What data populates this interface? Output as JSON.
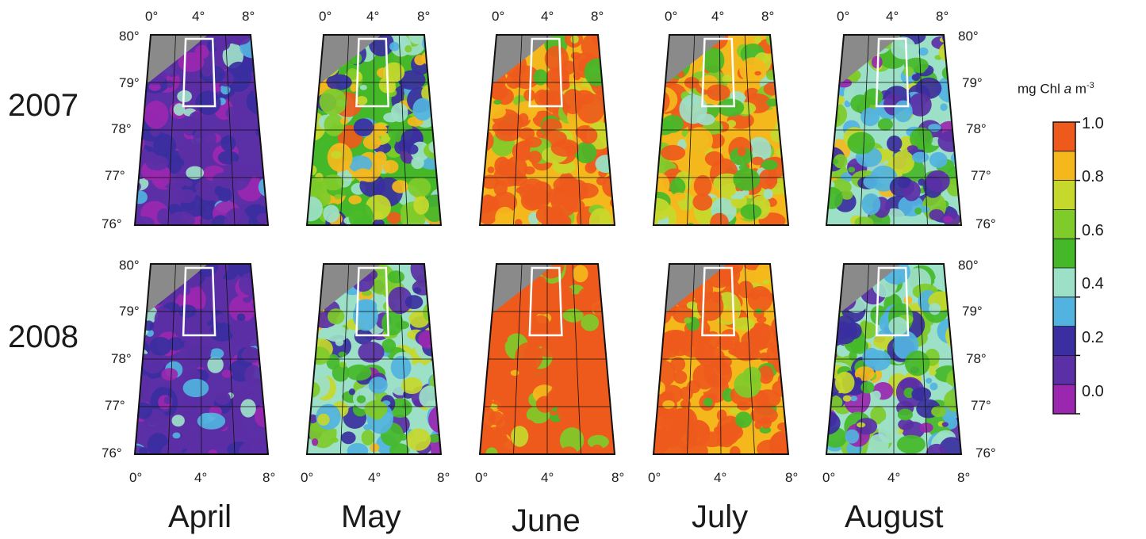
{
  "years": [
    "2007",
    "2008"
  ],
  "months": [
    "April",
    "May",
    "June",
    "July",
    "August"
  ],
  "lon_ticks": [
    "0°",
    "4°",
    "8°"
  ],
  "lat_ticks": [
    "80°",
    "79°",
    "78°",
    "77°",
    "76°"
  ],
  "colorbar": {
    "unit_prefix": "mg Chl ",
    "unit_italic": "a",
    "unit_suffix": " m",
    "unit_exponent": "-3",
    "tick_labels": [
      "1.0",
      "0.8",
      "0.6",
      "0.4",
      "0.2",
      "0.0"
    ],
    "colors": [
      "#9b27b0",
      "#5b2fa5",
      "#3a2fa0",
      "#52b3e0",
      "#9de0c8",
      "#45b829",
      "#7fcb2a",
      "#c6d82b",
      "#f5b81c",
      "#ee5a1c"
    ]
  },
  "land_color": "#8a8a8a",
  "panels": [
    {
      "year": "2007",
      "month": "April",
      "bloom_level": 0.12
    },
    {
      "year": "2007",
      "month": "May",
      "bloom_level": 0.55
    },
    {
      "year": "2007",
      "month": "June",
      "bloom_level": 0.85
    },
    {
      "year": "2007",
      "month": "July",
      "bloom_level": 0.8
    },
    {
      "year": "2007",
      "month": "August",
      "bloom_level": 0.45
    },
    {
      "year": "2008",
      "month": "April",
      "bloom_level": 0.12
    },
    {
      "year": "2008",
      "month": "May",
      "bloom_level": 0.45
    },
    {
      "year": "2008",
      "month": "June",
      "bloom_level": 0.95
    },
    {
      "year": "2008",
      "month": "July",
      "bloom_level": 0.88
    },
    {
      "year": "2008",
      "month": "August",
      "bloom_level": 0.45
    }
  ]
}
